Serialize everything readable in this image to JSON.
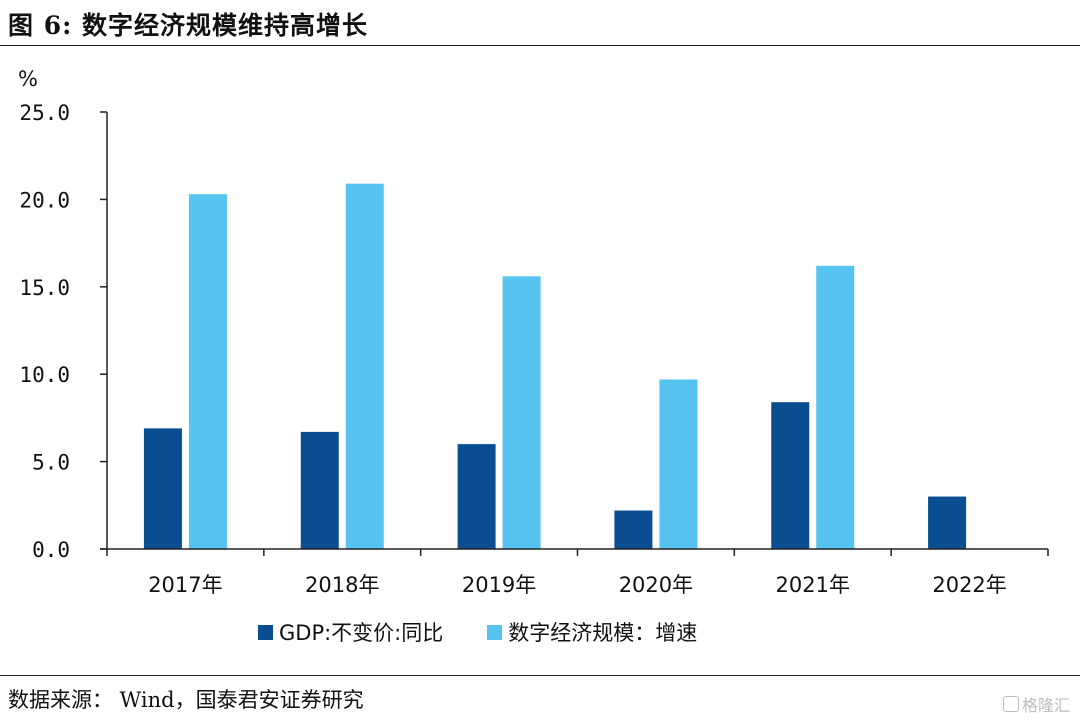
{
  "title": "图 6: 数字经济规模维持高增长",
  "source": "数据来源： Wind，国泰君安证券研究",
  "watermark": "格隆汇",
  "colors": {
    "gdp": "#0a4d91",
    "digital": "#56c3f0"
  },
  "chart_data": {
    "type": "bar",
    "title": "",
    "xlabel": "",
    "ylabel": "%",
    "ylim": [
      0,
      25
    ],
    "yticks": [
      "0.0",
      "5.0",
      "10.0",
      "15.0",
      "20.0",
      "25.0"
    ],
    "categories": [
      "2017年",
      "2018年",
      "2019年",
      "2020年",
      "2021年",
      "2022年"
    ],
    "series": [
      {
        "name": "GDP:不变价:同比",
        "values": [
          6.9,
          6.7,
          6.0,
          2.2,
          8.4,
          3.0
        ]
      },
      {
        "name": "数字经济规模：增速",
        "values": [
          20.3,
          20.9,
          15.6,
          9.7,
          16.2,
          null
        ]
      }
    ],
    "legend_position": "bottom",
    "grid": false
  }
}
